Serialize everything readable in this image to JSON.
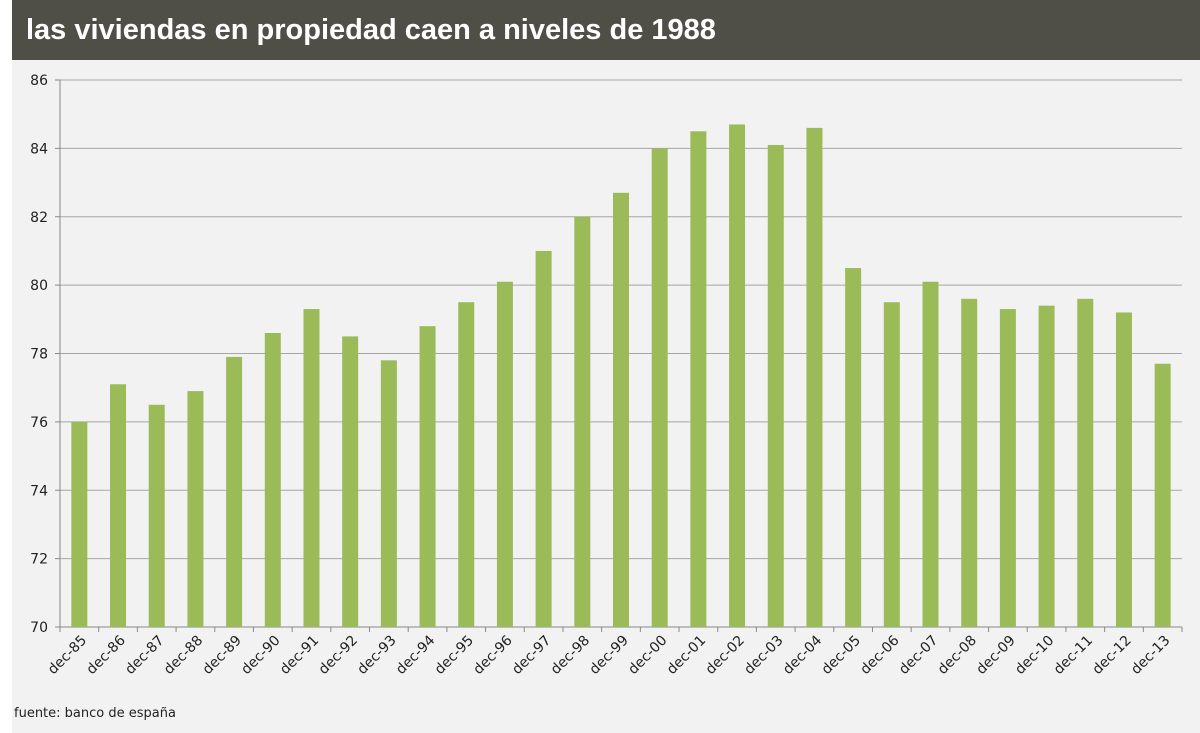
{
  "title": "las viviendas en propiedad caen a niveles de 1988",
  "source": "fuente: banco de españa",
  "colors": {
    "bar": "#9bbb59",
    "header": "#4f4f47",
    "background": "#f2f2f2",
    "grid": "#a6a6a6"
  },
  "chart_data": {
    "type": "bar",
    "title": "las viviendas en propiedad caen a niveles de 1988",
    "xlabel": "",
    "ylabel": "",
    "ylim": [
      70,
      86
    ],
    "yticks": [
      70,
      72,
      74,
      76,
      78,
      80,
      82,
      84,
      86
    ],
    "grid": true,
    "legend": "none",
    "categories": [
      "dec-85",
      "dec-86",
      "dec-87",
      "dec-88",
      "dec-89",
      "dec-90",
      "dec-91",
      "dec-92",
      "dec-93",
      "dec-94",
      "dec-95",
      "dec-96",
      "dec-97",
      "dec-98",
      "dec-99",
      "dec-00",
      "dec-01",
      "dec-02",
      "dec-03",
      "dec-04",
      "dec-05",
      "dec-06",
      "dec-07",
      "dec-08",
      "dec-09",
      "dec-10",
      "dec-11",
      "dec-12",
      "dec-13"
    ],
    "values": [
      76.0,
      77.1,
      76.5,
      76.9,
      77.9,
      78.6,
      79.3,
      78.5,
      77.8,
      78.8,
      79.5,
      80.1,
      81.0,
      82.0,
      82.7,
      84.0,
      84.5,
      84.7,
      84.1,
      84.6,
      80.5,
      79.5,
      80.1,
      79.6,
      79.3,
      79.4,
      79.6,
      79.2,
      77.7
    ]
  }
}
